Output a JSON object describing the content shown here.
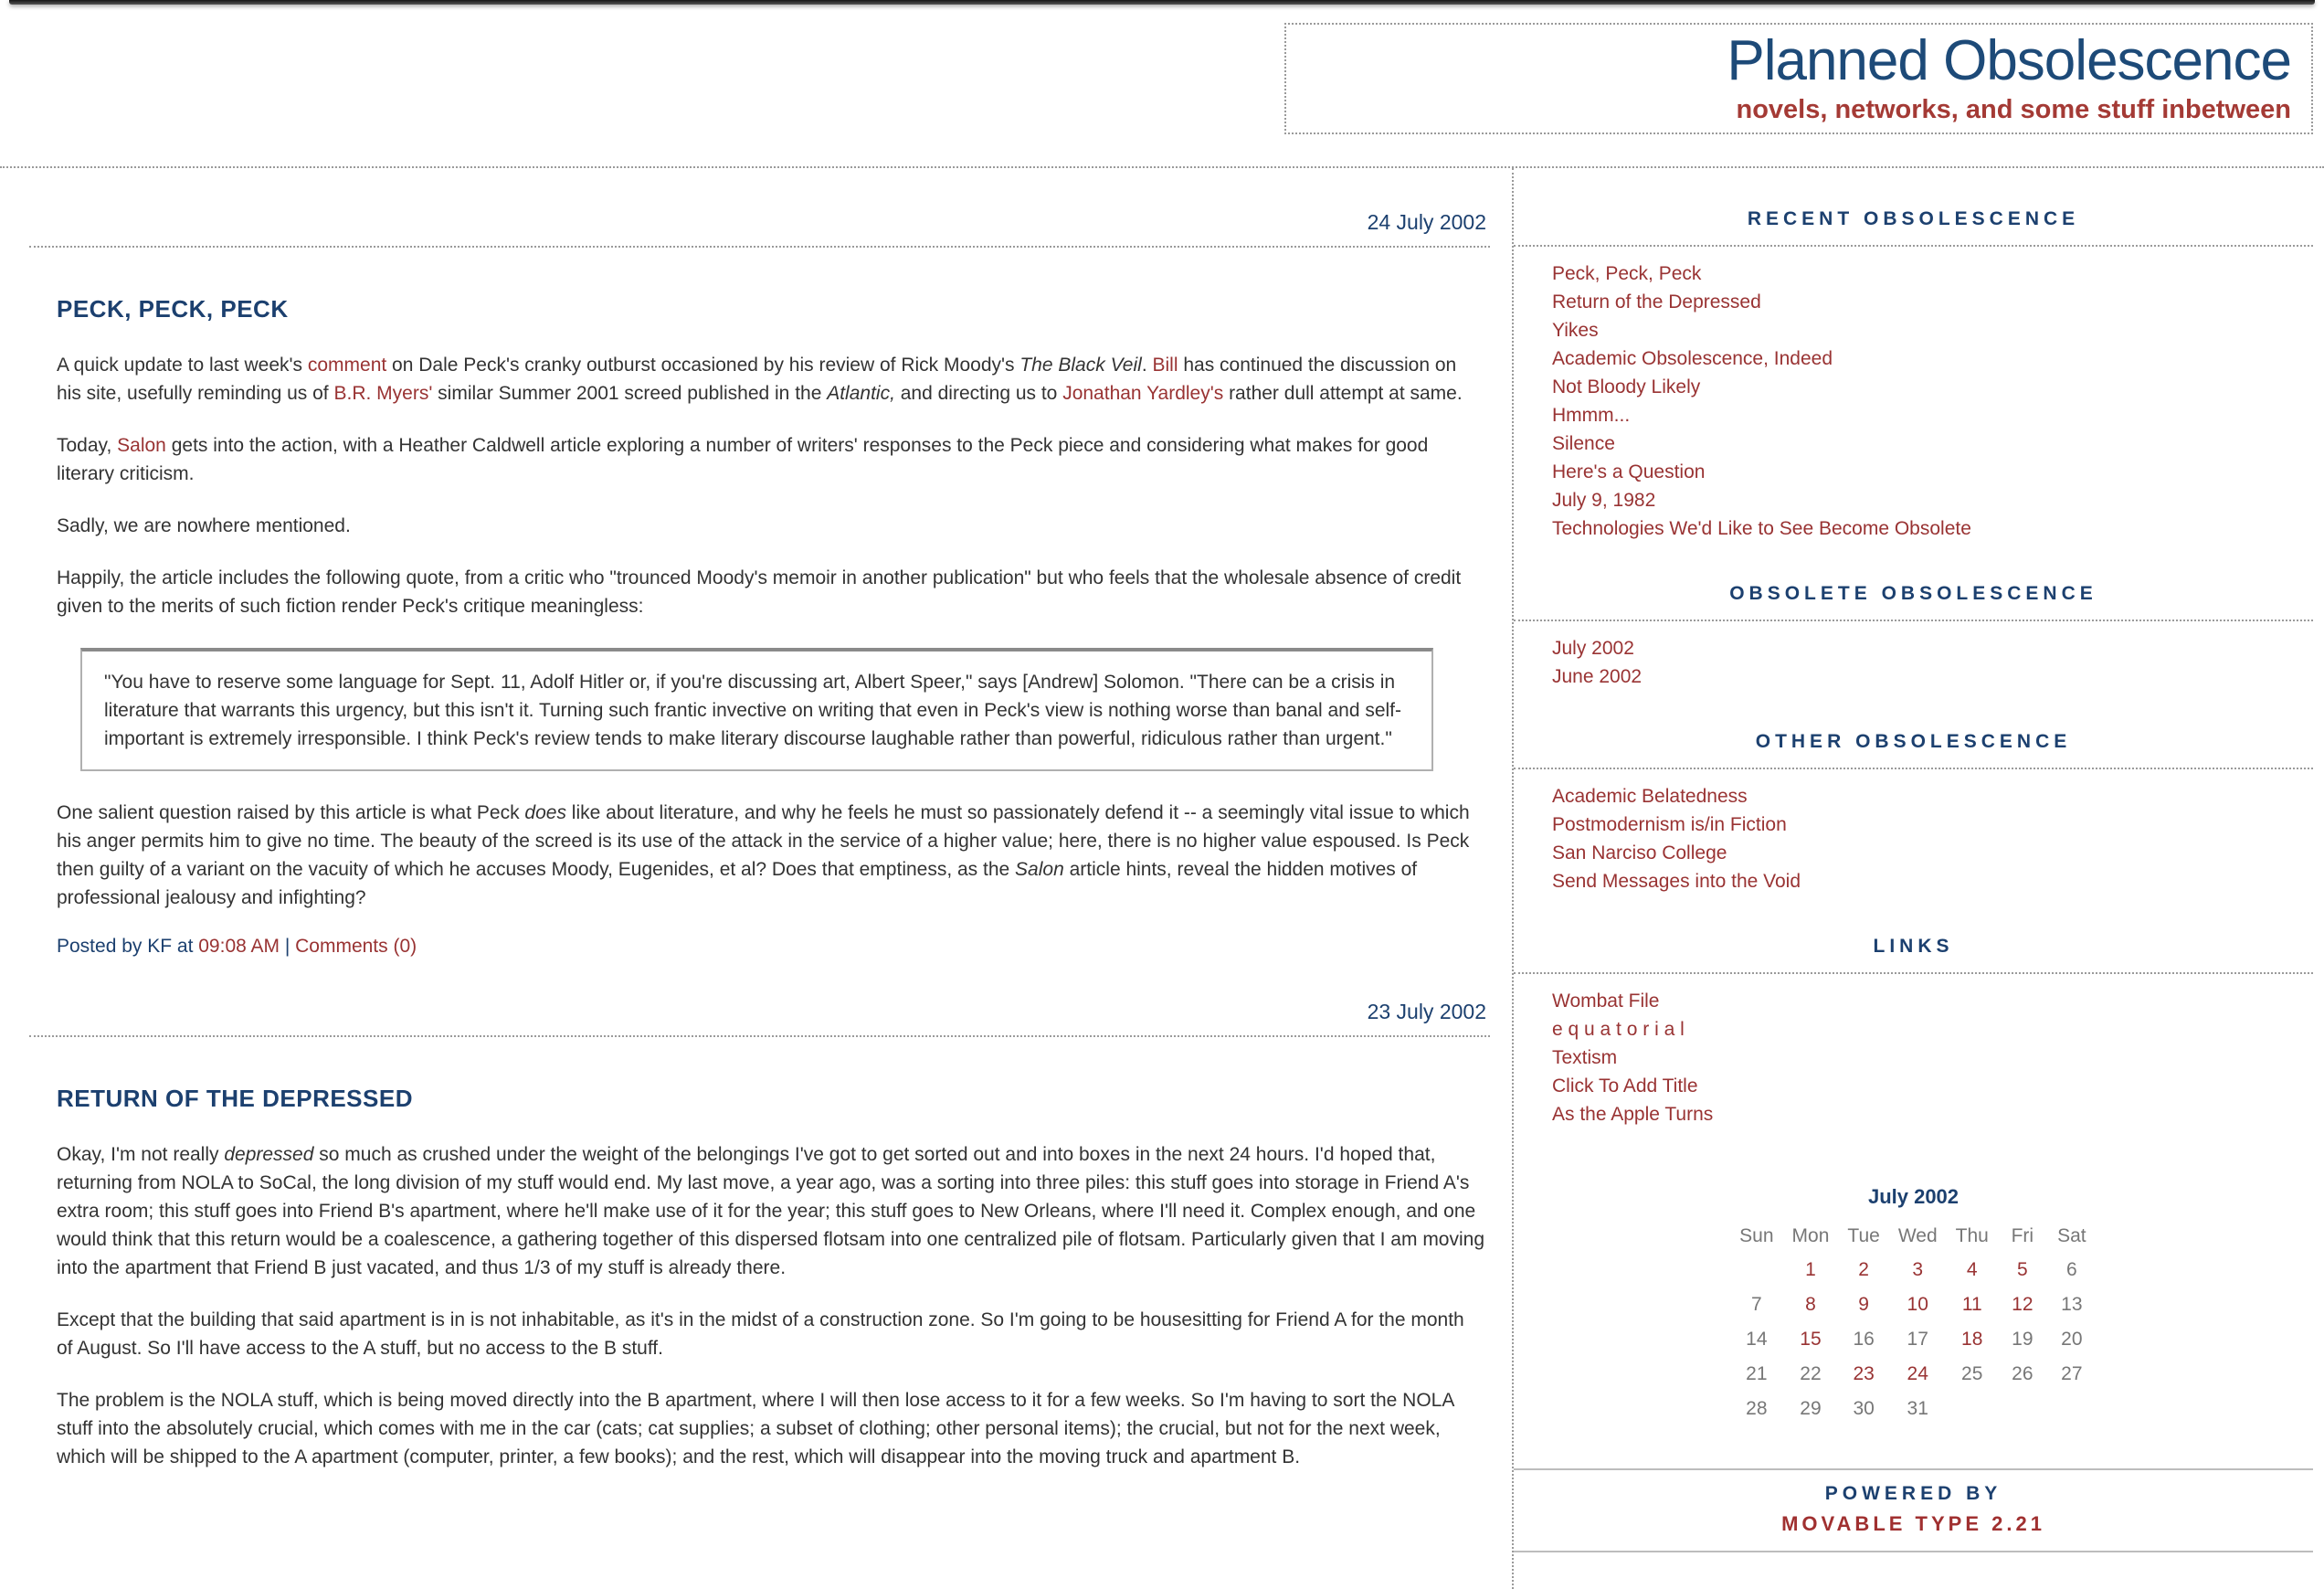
{
  "header": {
    "title": "Planned Obsolescence",
    "subtitle": "novels, networks, and some stuff inbetween"
  },
  "posts": [
    {
      "date": "24 July 2002",
      "title": "PECK, PECK, PECK",
      "p1": [
        {
          "t": "A quick update to last week's ",
          "s": "plain"
        },
        {
          "t": "comment",
          "s": "link"
        },
        {
          "t": " on Dale Peck's cranky outburst occasioned by his review of Rick Moody's ",
          "s": "plain"
        },
        {
          "t": "The Black Veil",
          "s": "em"
        },
        {
          "t": ". ",
          "s": "plain"
        },
        {
          "t": "Bill",
          "s": "link"
        },
        {
          "t": " has continued the discussion on his site, usefully reminding us of ",
          "s": "plain"
        },
        {
          "t": "B.R. Myers'",
          "s": "link"
        },
        {
          "t": " similar Summer 2001 screed published in the ",
          "s": "plain"
        },
        {
          "t": "Atlantic,",
          "s": "em"
        },
        {
          "t": " and directing us to ",
          "s": "plain"
        },
        {
          "t": "Jonathan Yardley's",
          "s": "link"
        },
        {
          "t": " rather dull attempt at same.",
          "s": "plain"
        }
      ],
      "p2": [
        {
          "t": "Today, ",
          "s": "plain"
        },
        {
          "t": "Salon",
          "s": "link"
        },
        {
          "t": " gets into the action, with a Heather Caldwell article exploring a number of writers' responses to the Peck piece and considering what makes for good literary criticism.",
          "s": "plain"
        }
      ],
      "p3": [
        {
          "t": "Sadly, we are nowhere mentioned.",
          "s": "plain"
        }
      ],
      "p4": [
        {
          "t": "Happily, the article includes the following quote, from a critic who \"trounced Moody's memoir in another publication\" but who feels that the wholesale absence of credit given to the merits of such fiction render Peck's critique meaningless:",
          "s": "plain"
        }
      ],
      "quote": [
        {
          "t": "\"You have to reserve some language for Sept. 11, Adolf Hitler or, if you're discussing art, Albert Speer,\" says [Andrew] Solomon. \"There can be a crisis in literature that warrants this urgency, but this isn't it. Turning such frantic invective on writing that even in Peck's view is nothing worse than banal and self-important is extremely irresponsible. I think Peck's review tends to make literary discourse laughable rather than powerful, ridiculous rather than urgent.\"",
          "s": "plain"
        }
      ],
      "p5": [
        {
          "t": "One salient question raised by this article is what Peck ",
          "s": "plain"
        },
        {
          "t": "does",
          "s": "em"
        },
        {
          "t": " like about literature, and why he feels he must so passionately defend it -- a seemingly vital issue to which his anger permits him to give no time. The beauty of the screed is its use of the attack in the service of a higher value; here, there is no higher value espoused. Is Peck then guilty of a variant on the vacuity of which he accuses Moody, Eugenides, et al? Does that emptiness, as the ",
          "s": "plain"
        },
        {
          "t": "Salon",
          "s": "em"
        },
        {
          "t": " article hints, reveal the hidden motives of professional jealousy and infighting?",
          "s": "plain"
        }
      ],
      "posted": [
        {
          "t": "Posted by KF at ",
          "s": "plain"
        },
        {
          "t": "09:08 AM",
          "s": "link"
        },
        {
          "t": " | ",
          "s": "plain"
        },
        {
          "t": "Comments (0)",
          "s": "link"
        }
      ]
    },
    {
      "date": "23 July 2002",
      "title": "RETURN OF THE DEPRESSED",
      "p1": [
        {
          "t": "Okay, I'm not really ",
          "s": "plain"
        },
        {
          "t": "depressed",
          "s": "em"
        },
        {
          "t": " so much as crushed under the weight of the belongings I've got to get sorted out and into boxes in the next 24 hours. I'd hoped that, returning from NOLA to SoCal, the long division of my stuff would end. My last move, a year ago, was a sorting into three piles: this stuff goes into storage in Friend A's extra room; this stuff goes into Friend B's apartment, where he'll make use of it for the year; this stuff goes to New Orleans, where I'll need it. Complex enough, and one would think that this return would be a coalescence, a gathering together of this dispersed flotsam into one centralized pile of flotsam. Particularly given that I am moving into the apartment that Friend B just vacated, and thus 1/3 of my stuff is already there.",
          "s": "plain"
        }
      ],
      "p2": [
        {
          "t": "Except that the building that said apartment is in is not inhabitable, as it's in the midst of a construction zone. So I'm going to be housesitting for Friend A for the month of August. So I'll have access to the A stuff, but no access to the B stuff.",
          "s": "plain"
        }
      ],
      "p3": [
        {
          "t": "The problem is the NOLA stuff, which is being moved directly into the B apartment, where I will then lose access to it for a few weeks. So I'm having to sort the NOLA stuff into the absolutely crucial, which comes with me in the car (cats; cat supplies; a subset of clothing; other personal items); the crucial, but not for the next week, which will be shipped to the A apartment (computer, printer, a few books); and the rest, which will disappear into the moving truck and apartment B.",
          "s": "plain"
        }
      ]
    }
  ],
  "sidebar": {
    "sections": [
      {
        "heading": "RECENT OBSOLESCENCE",
        "items": [
          "Peck, Peck, Peck",
          "Return of the Depressed",
          "Yikes",
          "Academic Obsolescence, Indeed",
          "Not Bloody Likely",
          "Hmmm...",
          "Silence",
          "Here's a Question",
          "July 9, 1982",
          "Technologies We'd Like to See Become Obsolete"
        ]
      },
      {
        "heading": "OBSOLETE OBSOLESCENCE",
        "items": [
          "July 2002",
          "June 2002"
        ]
      },
      {
        "heading": "OTHER OBSOLESCENCE",
        "items": [
          "Academic Belatedness",
          "Postmodernism is/in Fiction",
          "San Narciso College",
          "Send Messages into the Void"
        ]
      },
      {
        "heading": "LINKS",
        "items": [
          "Wombat File",
          "e q u a t o r i a l",
          "Textism",
          "Click To Add Title",
          "As the Apple Turns"
        ]
      }
    ],
    "calendar": {
      "title": "July 2002",
      "day_headers": [
        "Sun",
        "Mon",
        "Tue",
        "Wed",
        "Thu",
        "Fri",
        "Sat"
      ],
      "weeks": [
        [
          {
            "d": ""
          },
          {
            "d": "1",
            "link": true
          },
          {
            "d": "2",
            "link": true
          },
          {
            "d": "3",
            "link": true
          },
          {
            "d": "4",
            "link": true
          },
          {
            "d": "5",
            "link": true
          },
          {
            "d": "6"
          }
        ],
        [
          {
            "d": "7"
          },
          {
            "d": "8",
            "link": true
          },
          {
            "d": "9",
            "link": true
          },
          {
            "d": "10",
            "link": true
          },
          {
            "d": "11",
            "link": true
          },
          {
            "d": "12",
            "link": true
          },
          {
            "d": "13"
          }
        ],
        [
          {
            "d": "14"
          },
          {
            "d": "15",
            "link": true
          },
          {
            "d": "16"
          },
          {
            "d": "17"
          },
          {
            "d": "18",
            "link": true
          },
          {
            "d": "19"
          },
          {
            "d": "20"
          }
        ],
        [
          {
            "d": "21"
          },
          {
            "d": "22"
          },
          {
            "d": "23",
            "link": true
          },
          {
            "d": "24",
            "link": true
          },
          {
            "d": "25"
          },
          {
            "d": "26"
          },
          {
            "d": "27"
          }
        ],
        [
          {
            "d": "28"
          },
          {
            "d": "29"
          },
          {
            "d": "30"
          },
          {
            "d": "31"
          },
          {
            "d": ""
          },
          {
            "d": ""
          },
          {
            "d": ""
          }
        ]
      ]
    },
    "powered": {
      "line1": "POWERED BY",
      "line2": "MOVABLE TYPE 2.21"
    }
  },
  "colors": {
    "navy": "#1c406f",
    "title_navy": "#1d4a78",
    "link_red": "#993333",
    "subtitle_red": "#a43a35",
    "body_text": "#333333",
    "calendar_muted": "#777777"
  }
}
